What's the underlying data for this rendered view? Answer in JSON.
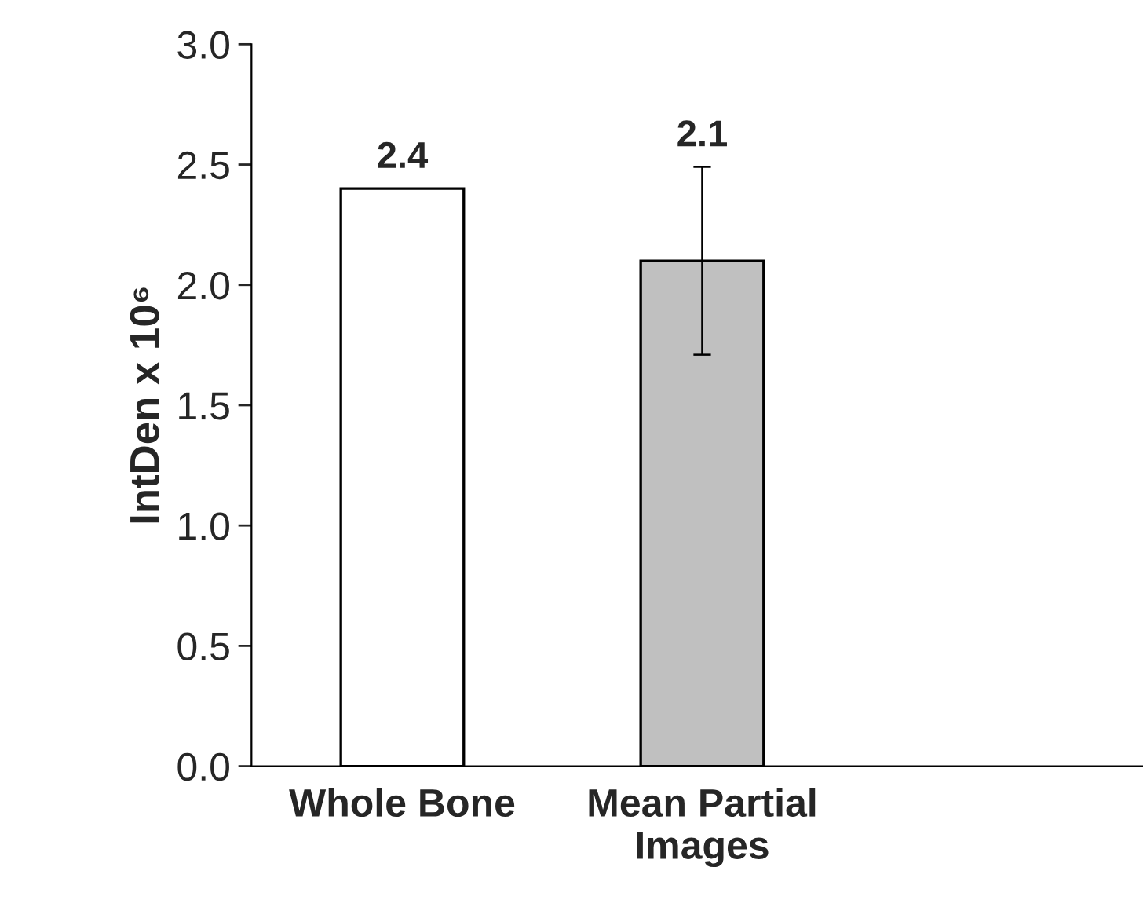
{
  "chart_data": {
    "type": "bar",
    "ylabel": "IntDen x 10⁶",
    "categories": [
      "Whole Bone",
      "Mean Partial\nImages"
    ],
    "values": [
      2.4,
      2.1
    ],
    "colors": [
      "#ffffff",
      "#c0c0c0"
    ],
    "errors": [
      null,
      0.39
    ],
    "data_labels": true,
    "ylim": [
      0,
      3.0
    ],
    "yticks": [
      {
        "value": 0,
        "label": "0.0"
      },
      {
        "value": 0.5,
        "label": "0.5"
      },
      {
        "value": 1.0,
        "label": "1.0"
      },
      {
        "value": 1.5,
        "label": "1.5"
      },
      {
        "value": 2.0,
        "label": "2.0"
      },
      {
        "value": 2.5,
        "label": "2.5"
      },
      {
        "value": 3.0,
        "label": "3.0"
      }
    ],
    "grid": false
  }
}
